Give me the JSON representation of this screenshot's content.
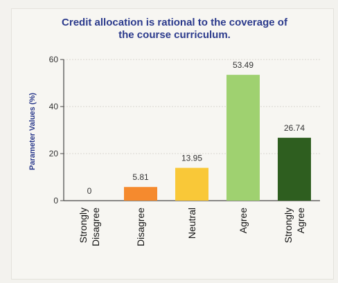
{
  "chart_data": {
    "type": "bar",
    "title_lines": [
      "Credit allocation is rational to the coverage of",
      "the course curriculum."
    ],
    "ylabel": "Parameter Values (%)",
    "xlabel": "",
    "ylim": [
      0,
      60
    ],
    "yticks": [
      0,
      20,
      40,
      60
    ],
    "grid": true,
    "categories": [
      {
        "lines": [
          "Strongly",
          "Disagree"
        ]
      },
      {
        "lines": [
          "Disagree"
        ]
      },
      {
        "lines": [
          "Neutral"
        ]
      },
      {
        "lines": [
          "Agree"
        ]
      },
      {
        "lines": [
          "Strongly",
          "Agree"
        ]
      }
    ],
    "values": [
      0,
      5.81,
      13.95,
      53.49,
      26.74
    ],
    "value_labels": [
      "0",
      "5.81",
      "13.95",
      "53.49",
      "26.74"
    ],
    "colors": [
      "#cfcfcf",
      "#f58a2e",
      "#f9c838",
      "#9fd170",
      "#2e5e1f"
    ]
  }
}
